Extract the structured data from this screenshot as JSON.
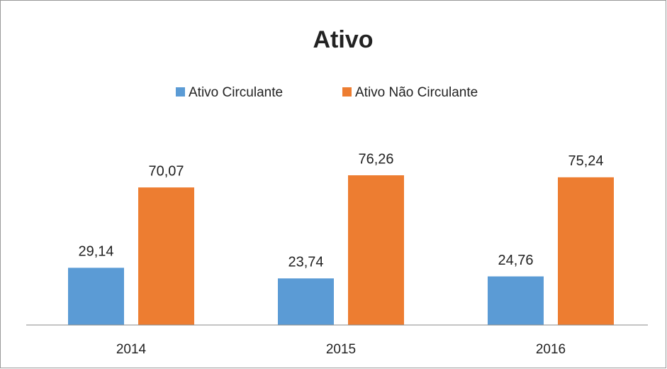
{
  "chart_data": {
    "type": "bar",
    "title": "Ativo",
    "categories": [
      "2014",
      "2015",
      "2016"
    ],
    "series": [
      {
        "name": "Ativo Circulante",
        "color": "#5b9bd5",
        "values": [
          29.14,
          23.74,
          24.76
        ],
        "value_labels": [
          "29,14",
          "23,74",
          "24,76"
        ]
      },
      {
        "name": "Ativo Não Circulante",
        "color": "#ed7d31",
        "values": [
          70.07,
          76.26,
          75.24
        ],
        "value_labels": [
          "70,07",
          "76,26",
          "75,24"
        ]
      }
    ],
    "ylim": [
      0,
      90
    ],
    "legend": "top"
  }
}
